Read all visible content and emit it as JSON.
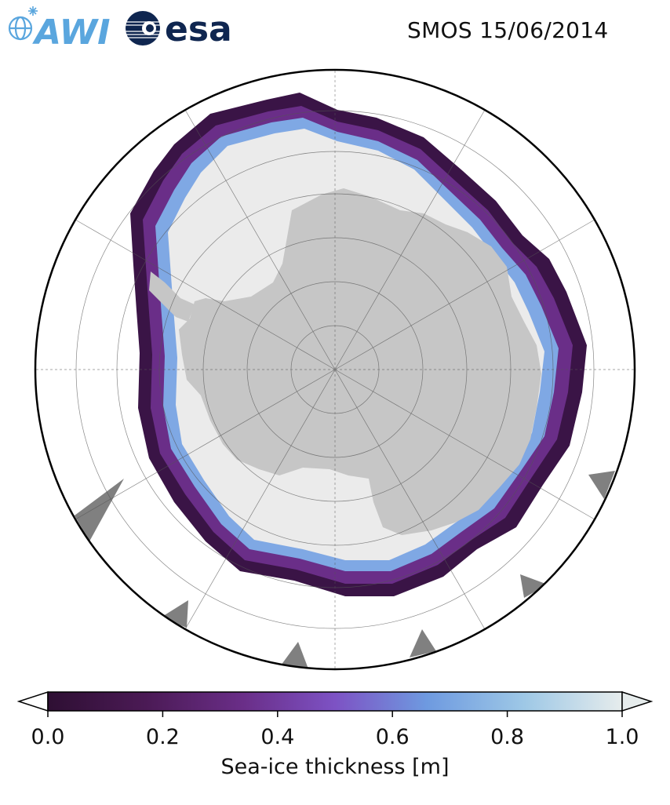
{
  "logos": {
    "awi": {
      "text": "AWI",
      "color": "#5aa6de"
    },
    "esa": {
      "text": "esa",
      "color": "#0f2650"
    }
  },
  "title": "SMOS 15/06/2014",
  "map": {
    "projection": "south-polar-stereographic",
    "land_color": "#c6c6c6",
    "ice_base_color": "#ebebeb",
    "ocean_color": "#ffffff",
    "missing_data_color": "#808080"
  },
  "colorbar": {
    "label": "Sea-ice thickness [m]",
    "min": 0.0,
    "max": 1.0,
    "ticks": [
      {
        "value": 0.0,
        "label": "0.0"
      },
      {
        "value": 0.2,
        "label": "0.2"
      },
      {
        "value": 0.4,
        "label": "0.4"
      },
      {
        "value": 0.6,
        "label": "0.6"
      },
      {
        "value": 0.8,
        "label": "0.8"
      },
      {
        "value": 1.0,
        "label": "1.0"
      }
    ],
    "colormap": [
      "#2e0f33",
      "#4b1a55",
      "#6a2e88",
      "#7d52c4",
      "#6e9ae0",
      "#9ec8e6",
      "#e6ecec"
    ],
    "extend": "both"
  }
}
